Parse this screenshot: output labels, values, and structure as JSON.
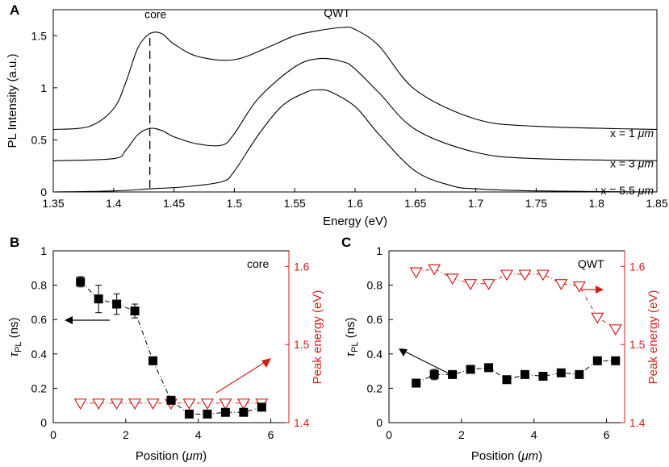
{
  "chart_data": [
    {
      "panel": "A",
      "type": "line",
      "xlabel": "Energy (eV)",
      "ylabel": "PL Intensity (a.u.)",
      "xlim": [
        1.35,
        1.85
      ],
      "ylim": [
        0,
        1.75
      ],
      "xticks": [
        "1.35",
        "1.4",
        "1.45",
        "1.5",
        "1.55",
        "1.6",
        "1.65",
        "1.7",
        "1.75",
        "1.8",
        "1.85"
      ],
      "yticks": [
        "0",
        "0.5",
        "1",
        "1.5"
      ],
      "annotations": {
        "core": "core",
        "qwt": "QWT",
        "core_line_x": 1.43
      },
      "series": [
        {
          "name": "x = 1 μm",
          "label_prefix": "x = 1 ",
          "label_unit": "μm",
          "x": [
            1.35,
            1.38,
            1.4,
            1.41,
            1.42,
            1.43,
            1.44,
            1.45,
            1.47,
            1.5,
            1.53,
            1.55,
            1.57,
            1.59,
            1.6,
            1.62,
            1.65,
            1.7,
            1.75,
            1.85
          ],
          "y": [
            0.6,
            0.63,
            0.8,
            1.05,
            1.38,
            1.52,
            1.52,
            1.42,
            1.3,
            1.27,
            1.4,
            1.5,
            1.55,
            1.58,
            1.56,
            1.4,
            0.98,
            0.7,
            0.63,
            0.6
          ]
        },
        {
          "name": "x = 3 μm",
          "label_prefix": "x = 3 ",
          "label_unit": "μm",
          "x": [
            1.35,
            1.4,
            1.41,
            1.42,
            1.43,
            1.44,
            1.45,
            1.47,
            1.49,
            1.5,
            1.52,
            1.55,
            1.57,
            1.59,
            1.6,
            1.62,
            1.65,
            1.7,
            1.75,
            1.85
          ],
          "y": [
            0.3,
            0.32,
            0.4,
            0.55,
            0.61,
            0.59,
            0.53,
            0.46,
            0.45,
            0.56,
            0.9,
            1.2,
            1.28,
            1.25,
            1.18,
            0.95,
            0.6,
            0.38,
            0.32,
            0.3
          ]
        },
        {
          "name": "x = 5.5 μm",
          "label_prefix": "x = 5.5 ",
          "label_unit": "μm",
          "x": [
            1.35,
            1.4,
            1.43,
            1.46,
            1.49,
            1.5,
            1.52,
            1.54,
            1.56,
            1.57,
            1.58,
            1.6,
            1.62,
            1.65,
            1.68,
            1.7,
            1.75,
            1.85
          ],
          "y": [
            0.0,
            0.01,
            0.03,
            0.05,
            0.1,
            0.2,
            0.55,
            0.83,
            0.96,
            0.98,
            0.96,
            0.82,
            0.55,
            0.2,
            0.06,
            0.03,
            0.01,
            0.0
          ]
        }
      ]
    },
    {
      "panel": "B",
      "type": "scatter",
      "xlabel_prefix": "Position (",
      "xlabel_unit": "μm",
      "xlabel_suffix": ")",
      "ylabel_main": "τ",
      "ylabel_sub": "PL",
      "ylabel_suffix": " (ns)",
      "ylabel_right": "Peak energy (eV)",
      "xlim": [
        0,
        6.5
      ],
      "ylim_left": [
        0,
        1
      ],
      "ylim_right": [
        1.4,
        1.62
      ],
      "xticks": [
        "0",
        "2",
        "4",
        "6"
      ],
      "yticks_left": [
        "0",
        "0.2",
        "0.4",
        "0.6",
        "0.8",
        "1"
      ],
      "yticks_right": [
        "1.4",
        "1.5",
        "1.6"
      ],
      "label": "core",
      "series": [
        {
          "name": "tau_PL",
          "axis": "left",
          "x": [
            0.75,
            1.25,
            1.75,
            2.25,
            2.75,
            3.25,
            3.75,
            4.25,
            4.75,
            5.25,
            5.75
          ],
          "values": [
            0.82,
            0.72,
            0.69,
            0.65,
            0.36,
            0.13,
            0.05,
            0.05,
            0.06,
            0.06,
            0.09
          ],
          "errors": [
            0.03,
            0.08,
            0.06,
            0.04,
            0.01,
            0.01,
            0.01,
            0.01,
            0.01,
            0.01,
            0.02
          ]
        },
        {
          "name": "peak_energy",
          "axis": "right",
          "x": [
            0.75,
            1.25,
            1.75,
            2.25,
            2.75,
            3.25,
            3.75,
            4.25,
            4.75,
            5.25,
            5.75
          ],
          "values": [
            1.425,
            1.425,
            1.425,
            1.425,
            1.425,
            1.425,
            1.425,
            1.425,
            1.425,
            1.425,
            1.425
          ]
        }
      ]
    },
    {
      "panel": "C",
      "type": "scatter",
      "xlabel_prefix": "Position (",
      "xlabel_unit": "μm",
      "xlabel_suffix": ")",
      "ylabel_main": "τ",
      "ylabel_sub": "PL",
      "ylabel_suffix": " (ns)",
      "ylabel_right": "Peak energy (eV)",
      "xlim": [
        0,
        6.5
      ],
      "ylim_left": [
        0,
        1
      ],
      "ylim_right": [
        1.4,
        1.62
      ],
      "xticks": [
        "0",
        "2",
        "4",
        "6"
      ],
      "yticks_left": [
        "0",
        "0.2",
        "0.4",
        "0.6",
        "0.8",
        "1"
      ],
      "yticks_right": [
        "1.4",
        "1.5",
        "1.6"
      ],
      "label": "QWT",
      "series": [
        {
          "name": "tau_PL",
          "axis": "left",
          "x": [
            0.75,
            1.25,
            1.75,
            2.25,
            2.75,
            3.25,
            3.75,
            4.25,
            4.75,
            5.25,
            5.75,
            6.25
          ],
          "values": [
            0.23,
            0.28,
            0.28,
            0.31,
            0.32,
            0.25,
            0.28,
            0.27,
            0.29,
            0.28,
            0.36,
            0.36
          ],
          "errors": [
            0.01,
            0.03,
            0.01,
            0.02,
            0.01,
            0.01,
            0.01,
            0.01,
            0.01,
            0.01,
            0.01,
            0.01
          ]
        },
        {
          "name": "peak_energy",
          "axis": "right",
          "x": [
            0.75,
            1.25,
            1.75,
            2.25,
            2.75,
            3.25,
            3.75,
            4.25,
            4.75,
            5.25,
            5.75,
            6.25
          ],
          "values": [
            1.593,
            1.597,
            1.585,
            1.578,
            1.578,
            1.59,
            1.59,
            1.59,
            1.578,
            1.575,
            1.535,
            1.52
          ]
        }
      ]
    }
  ]
}
